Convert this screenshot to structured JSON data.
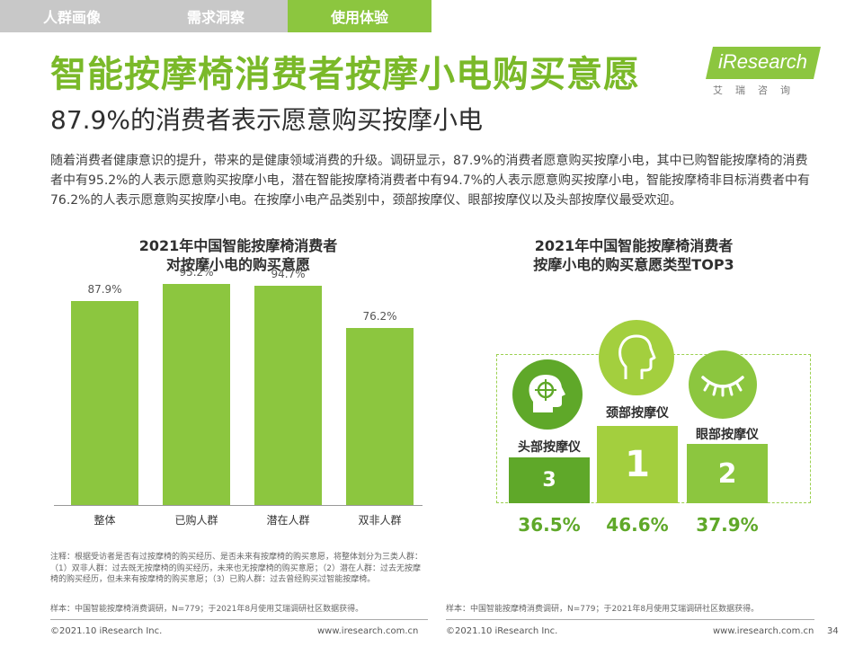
{
  "nav": {
    "tabs": [
      {
        "label": "人群画像"
      },
      {
        "label": "需求洞察"
      },
      {
        "label": "使用体验"
      }
    ]
  },
  "header": {
    "title": "智能按摩椅消费者按摩小电购买意愿",
    "subtitle": "87.9%的消费者表示愿意购买按摩小电"
  },
  "logo": {
    "brand": "iResearch",
    "cn": "艾瑞咨询"
  },
  "body_text": "随着消费者健康意识的提升，带来的是健康领域消费的升级。调研显示，87.9%的消费者愿意购买按摩小电，其中已购智能按摩椅的消费者中有95.2%的人表示愿意购买按摩小电，潜在智能按摩椅消费者中有94.7%的人表示愿意购买按摩小电，智能按摩椅非目标消费者中有76.2%的人表示愿意购买按摩小电。在按摩小电产品类别中，颈部按摩仪、眼部按摩仪以及头部按摩仪最受欢迎。",
  "colors": {
    "accent": "#8cc63f",
    "accent_dark": "#7ab929",
    "pct_text": "#5fa829"
  },
  "chart_data": [
    {
      "type": "bar",
      "title": "2021年中国智能按摩椅消费者",
      "subtitle": "对按摩小电的购买意愿",
      "categories": [
        "整体",
        "已购人群",
        "潜在人群",
        "双非人群"
      ],
      "values": [
        87.9,
        95.2,
        94.7,
        76.2
      ],
      "value_labels": [
        "87.9%",
        "95.2%",
        "94.7%",
        "76.2%"
      ],
      "ylim": [
        0,
        100
      ],
      "ylabel": "",
      "xlabel": ""
    },
    {
      "type": "table",
      "title": "2021年中国智能按摩椅消费者",
      "subtitle": "按摩小电的购买意愿类型TOP3",
      "items": [
        {
          "rank": "3",
          "name": "头部按摩仪",
          "value": 36.5,
          "label": "36.5%",
          "icon": "head-target-icon"
        },
        {
          "rank": "1",
          "name": "颈部按摩仪",
          "value": 46.6,
          "label": "46.6%",
          "icon": "head-profile-icon"
        },
        {
          "rank": "2",
          "name": "眼部按摩仪",
          "value": 37.9,
          "label": "37.9%",
          "icon": "closed-eye-icon"
        }
      ]
    }
  ],
  "note": "注释：根据受访者是否有过按摩椅的购买经历、是否未来有按摩椅的购买意愿，将整体划分为三类人群：（1）双非人群：过去既无按摩椅的购买经历，未来也无按摩椅的购买意愿；（2）潜在人群：过去无按摩椅的购买经历，但未来有按摩椅的购买意愿；（3）已购人群：过去曾经购买过智能按摩椅。",
  "sample_left": "样本：中国智能按摩椅消费调研，N=779；于2021年8月使用艾瑞调研社区数据获得。",
  "sample_right": "样本：中国智能按摩椅消费调研，N=779；于2021年8月使用艾瑞调研社区数据获得。",
  "footer": {
    "copy_left": "©2021.10 iResearch Inc.",
    "url_left": "www.iresearch.com.cn",
    "copy_right": "©2021.10 iResearch Inc.",
    "url_right": "www.iresearch.com.cn",
    "page": "34"
  }
}
